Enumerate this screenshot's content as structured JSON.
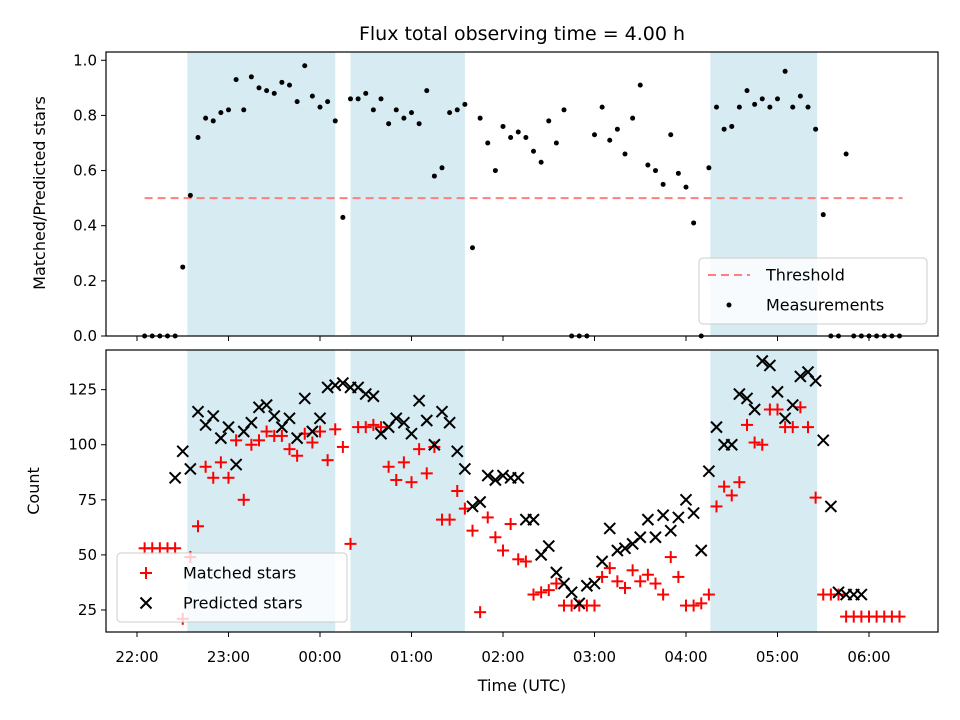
{
  "chart_data": [
    {
      "type": "scatter",
      "title": "Flux total observing time = 4.00 h",
      "xlabel": "",
      "ylabel": "Matched/Predicted stars",
      "ylim": [
        0,
        1.03
      ],
      "yticks": [
        "0.0",
        "0.2",
        "0.4",
        "0.6",
        "0.8",
        "1.0"
      ],
      "grid": false,
      "legend_position": "lower-right",
      "shaded_intervals": [
        [
          "22:33",
          "00:10"
        ],
        [
          "00:20",
          "01:35"
        ],
        [
          "04:16",
          "05:26"
        ]
      ],
      "threshold": {
        "name": "Threshold",
        "value": 0.5,
        "x_start": "22:05",
        "x_end": "06:22",
        "color": "#ff7f7f"
      },
      "series": [
        {
          "name": "Measurements",
          "color": "#000000",
          "x": [
            "22:05",
            "22:10",
            "22:15",
            "22:20",
            "22:25",
            "22:30",
            "22:35",
            "22:40",
            "22:45",
            "22:50",
            "22:55",
            "23:00",
            "23:05",
            "23:10",
            "23:15",
            "23:20",
            "23:25",
            "23:30",
            "23:35",
            "23:40",
            "23:45",
            "23:50",
            "23:55",
            "00:00",
            "00:05",
            "00:10",
            "00:15",
            "00:20",
            "00:25",
            "00:30",
            "00:35",
            "00:40",
            "00:45",
            "00:50",
            "00:55",
            "01:00",
            "01:05",
            "01:10",
            "01:15",
            "01:20",
            "01:25",
            "01:30",
            "01:35",
            "01:40",
            "01:45",
            "01:50",
            "01:55",
            "02:00",
            "02:05",
            "02:10",
            "02:15",
            "02:20",
            "02:25",
            "02:30",
            "02:35",
            "02:40",
            "02:45",
            "02:50",
            "02:55",
            "03:00",
            "03:05",
            "03:10",
            "03:15",
            "03:20",
            "03:25",
            "03:30",
            "03:35",
            "03:40",
            "03:45",
            "03:50",
            "03:55",
            "04:00",
            "04:05",
            "04:10",
            "04:15",
            "04:20",
            "04:25",
            "04:30",
            "04:35",
            "04:40",
            "04:45",
            "04:50",
            "04:55",
            "05:00",
            "05:05",
            "05:10",
            "05:15",
            "05:20",
            "05:25",
            "05:30",
            "05:35",
            "05:40",
            "05:45",
            "05:50",
            "05:55",
            "06:00",
            "06:05",
            "06:10",
            "06:15",
            "06:20"
          ],
          "y": [
            0,
            0,
            0,
            0,
            0,
            0.25,
            0.51,
            0.72,
            0.79,
            0.78,
            0.81,
            0.82,
            0.93,
            0.82,
            0.94,
            0.9,
            0.89,
            0.88,
            0.92,
            0.91,
            0.85,
            0.98,
            0.87,
            0.83,
            0.85,
            0.78,
            0.43,
            0.86,
            0.86,
            0.88,
            0.82,
            0.86,
            0.77,
            0.82,
            0.79,
            0.81,
            0.77,
            0.89,
            0.58,
            0.61,
            0.81,
            0.82,
            0.84,
            0.32,
            0.79,
            0.7,
            0.6,
            0.76,
            0.72,
            0.74,
            0.72,
            0.67,
            0.63,
            0.78,
            0.7,
            0.82,
            0.0,
            0.0,
            0.0,
            0.73,
            0.83,
            0.71,
            0.75,
            0.66,
            0.79,
            0.91,
            0.62,
            0.6,
            0.55,
            0.73,
            0.59,
            0.54,
            0.41,
            0.0,
            0.61,
            0.83,
            0.75,
            0.76,
            0.83,
            0.89,
            0.84,
            0.86,
            0.83,
            0.86,
            0.96,
            0.83,
            0.87,
            0.83,
            0.75,
            0.44,
            0.0,
            0.0,
            0.66,
            0.0,
            0.0,
            0.0,
            0.0,
            0.0,
            0.0,
            0.0
          ]
        }
      ]
    },
    {
      "type": "scatter",
      "title": "",
      "xlabel": "Time (UTC)",
      "ylabel": "Count",
      "ylim": [
        15,
        143
      ],
      "yticks": [
        "25",
        "50",
        "75",
        "100",
        "125"
      ],
      "xticks": [
        "22:00",
        "23:00",
        "00:00",
        "01:00",
        "02:00",
        "03:00",
        "04:00",
        "05:00",
        "06:00"
      ],
      "grid": false,
      "legend_position": "lower-left",
      "shaded_intervals": [
        [
          "22:33",
          "00:10"
        ],
        [
          "00:20",
          "01:35"
        ],
        [
          "04:16",
          "05:26"
        ]
      ],
      "series": [
        {
          "name": "Matched stars",
          "marker": "+",
          "color": "#ff0000",
          "x": [
            "22:05",
            "22:10",
            "22:15",
            "22:20",
            "22:25",
            "22:30",
            "22:35",
            "22:40",
            "22:45",
            "22:50",
            "22:55",
            "23:00",
            "23:05",
            "23:10",
            "23:15",
            "23:20",
            "23:25",
            "23:30",
            "23:35",
            "23:40",
            "23:45",
            "23:50",
            "23:55",
            "00:00",
            "00:05",
            "00:10",
            "00:15",
            "00:20",
            "00:25",
            "00:30",
            "00:35",
            "00:40",
            "00:45",
            "00:50",
            "00:55",
            "01:00",
            "01:05",
            "01:10",
            "01:15",
            "01:20",
            "01:25",
            "01:30",
            "01:35",
            "01:40",
            "01:45",
            "01:50",
            "01:55",
            "02:00",
            "02:05",
            "02:10",
            "02:15",
            "02:20",
            "02:25",
            "02:30",
            "02:35",
            "02:40",
            "02:45",
            "02:50",
            "02:55",
            "03:00",
            "03:05",
            "03:10",
            "03:15",
            "03:20",
            "03:25",
            "03:30",
            "03:35",
            "03:40",
            "03:45",
            "03:50",
            "03:55",
            "04:00",
            "04:05",
            "04:10",
            "04:15",
            "04:20",
            "04:25",
            "04:30",
            "04:35",
            "04:40",
            "04:45",
            "04:50",
            "04:55",
            "05:00",
            "05:05",
            "05:10",
            "05:15",
            "05:20",
            "05:25",
            "05:30",
            "05:35",
            "05:40",
            "05:45",
            "05:50",
            "05:55",
            "06:00",
            "06:05",
            "06:10",
            "06:15",
            "06:20"
          ],
          "y": [
            53,
            53,
            53,
            53,
            53,
            21,
            49,
            63,
            90,
            85,
            92,
            85,
            102,
            75,
            100,
            102,
            106,
            104,
            104,
            98,
            95,
            105,
            101,
            106,
            93,
            107,
            99,
            55,
            108,
            108,
            109,
            108,
            90,
            84,
            92,
            83,
            98,
            87,
            99,
            66,
            66,
            79,
            71,
            61,
            24,
            67,
            58,
            52,
            64,
            48,
            47,
            32,
            33,
            34,
            37,
            27,
            27,
            27,
            27,
            27,
            40,
            44,
            38,
            35,
            43,
            38,
            41,
            37,
            32,
            49,
            40,
            27,
            27,
            28,
            32,
            72,
            81,
            77,
            83,
            109,
            101,
            100,
            116,
            116,
            108,
            108,
            117,
            108,
            76,
            32,
            32,
            32,
            22,
            22,
            22,
            22,
            22,
            22,
            22,
            22
          ]
        },
        {
          "name": "Predicted stars",
          "marker": "x",
          "color": "#000000",
          "x": [
            "22:25",
            "22:30",
            "22:35",
            "22:40",
            "22:45",
            "22:50",
            "22:55",
            "23:00",
            "23:05",
            "23:10",
            "23:15",
            "23:20",
            "23:25",
            "23:30",
            "23:35",
            "23:40",
            "23:45",
            "23:50",
            "23:55",
            "00:00",
            "00:05",
            "00:10",
            "00:15",
            "00:20",
            "00:25",
            "00:30",
            "00:35",
            "00:40",
            "00:45",
            "00:50",
            "00:55",
            "01:00",
            "01:05",
            "01:10",
            "01:15",
            "01:20",
            "01:25",
            "01:30",
            "01:35",
            "01:40",
            "01:45",
            "01:50",
            "01:55",
            "02:00",
            "02:05",
            "02:10",
            "02:15",
            "02:20",
            "02:25",
            "02:30",
            "02:35",
            "02:40",
            "02:45",
            "02:50",
            "02:55",
            "03:00",
            "03:05",
            "03:10",
            "03:15",
            "03:20",
            "03:25",
            "03:30",
            "03:35",
            "03:40",
            "03:45",
            "03:50",
            "03:55",
            "04:00",
            "04:05",
            "04:10",
            "04:15",
            "04:20",
            "04:25",
            "04:30",
            "04:35",
            "04:40",
            "04:45",
            "04:50",
            "04:55",
            "05:00",
            "05:05",
            "05:10",
            "05:15",
            "05:20",
            "05:25",
            "05:30",
            "05:35",
            "05:40",
            "05:45",
            "05:50",
            "05:55"
          ],
          "y": [
            85,
            97,
            89,
            115,
            109,
            113,
            103,
            108,
            91,
            106,
            110,
            117,
            118,
            113,
            108,
            112,
            103,
            121,
            106,
            112,
            126,
            127,
            128,
            126,
            126,
            123,
            122,
            105,
            108,
            112,
            110,
            105,
            120,
            111,
            100,
            115,
            110,
            97,
            89,
            72,
            74,
            86,
            84,
            86,
            85,
            85,
            66,
            66,
            50,
            54,
            42,
            37,
            33,
            28,
            36,
            37,
            47,
            62,
            52,
            53,
            55,
            58,
            66,
            58,
            68,
            61,
            67,
            75,
            69,
            52,
            88,
            108,
            100,
            100,
            123,
            121,
            116,
            138,
            136,
            124,
            112,
            118,
            131,
            133,
            129,
            102,
            72,
            33,
            32,
            32,
            32
          ]
        }
      ]
    }
  ]
}
